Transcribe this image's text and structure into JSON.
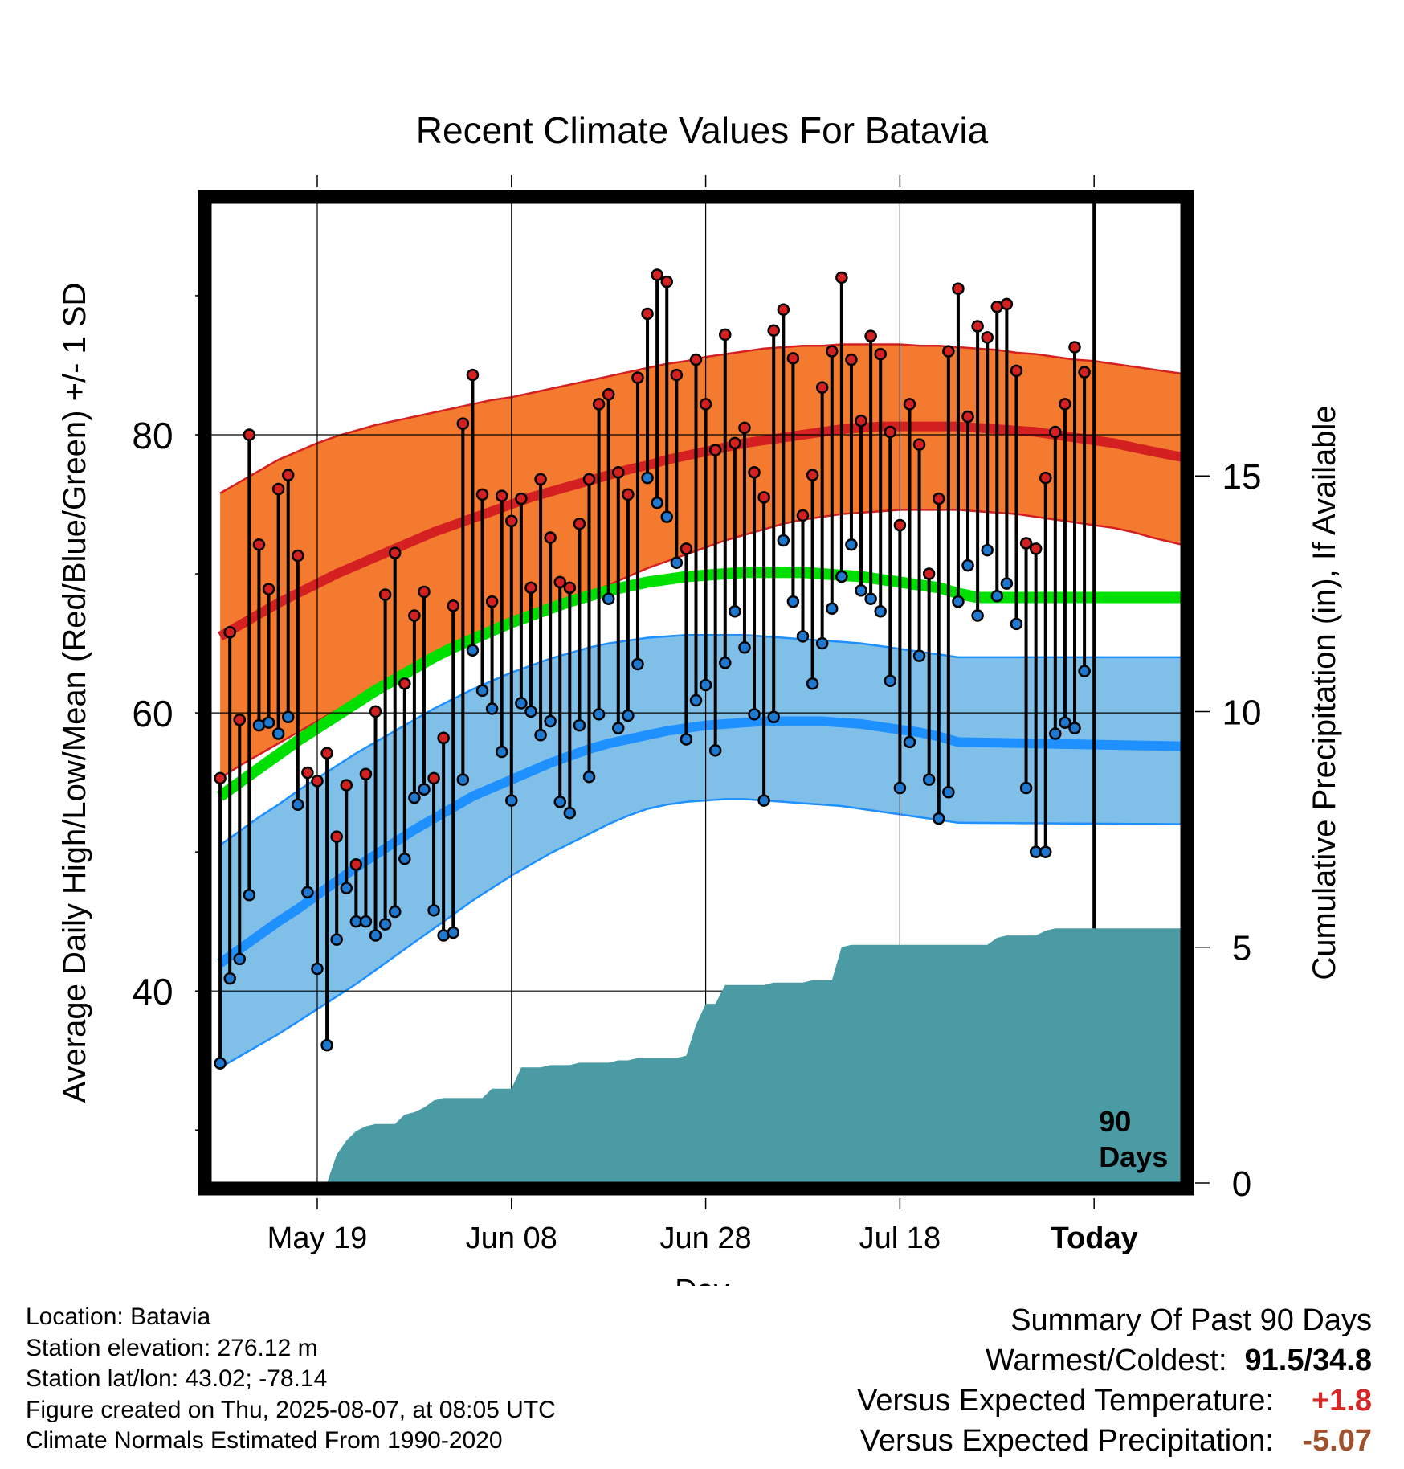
{
  "chart_data": {
    "type": "line",
    "title": "Recent Climate Values For Batavia",
    "xlabel": "Day",
    "ylabel": "Average Daily High/Low/Mean (Red/Blue/Green) +/- 1 SD",
    "y2label": "Cumulative Precipitation (in), If Available",
    "x_tick_labels": [
      "May 19",
      "Jun 08",
      "Jun 28",
      "Jul 18",
      "Today"
    ],
    "x_tick_days": [
      10,
      30,
      50,
      70,
      90
    ],
    "ylim": [
      26.2,
      96.7
    ],
    "y_ticks": [
      40,
      60,
      80
    ],
    "y_minor_ticks": [
      30,
      50,
      70,
      90
    ],
    "y2lim": [
      0,
      20.8
    ],
    "y2_ticks": [
      0,
      5,
      10,
      15
    ],
    "xlim": [
      -1,
      99
    ],
    "today_label": "90 Days",
    "grid": true,
    "colors": {
      "high_band": "#f47a30",
      "high_line": "#d42020",
      "low_band": "#80c0e8",
      "low_line": "#1e90ff",
      "mean_line": "#00e000",
      "precip": "#4a9ba3",
      "high_dot": "#d42020",
      "low_dot": "#1e78d0"
    },
    "normal_high": [
      65.5,
      66.3,
      67.1,
      67.9,
      68.6,
      69.3,
      70.0,
      70.6,
      71.2,
      71.8,
      72.4,
      73.0,
      73.5,
      74.0,
      74.5,
      75.0,
      75.5,
      75.9,
      76.3,
      76.7,
      77.1,
      77.5,
      77.8,
      78.2,
      78.5,
      78.8,
      79.1,
      79.4,
      79.6,
      79.8,
      80.0,
      80.2,
      80.4,
      80.5,
      80.6,
      80.6,
      80.6,
      80.6,
      80.6,
      80.5,
      80.4,
      80.3,
      80.2,
      80.0,
      79.8,
      79.6,
      79.4,
      79.1,
      78.8
    ],
    "normal_high_x": [
      0,
      2,
      4,
      6,
      8,
      10,
      12,
      14,
      16,
      18,
      20,
      22,
      24,
      26,
      28,
      30,
      32,
      34,
      36,
      38,
      40,
      42,
      44,
      46,
      48,
      50,
      52,
      54,
      56,
      58,
      60,
      62,
      64,
      66,
      68,
      70,
      72,
      74,
      76,
      78,
      80,
      82,
      84,
      86,
      88,
      90,
      92,
      94,
      96
    ],
    "normal_high_upper": [
      75.8,
      76.6,
      77.4,
      78.2,
      78.8,
      79.4,
      79.9,
      80.3,
      80.7,
      81.0,
      81.3,
      81.6,
      81.9,
      82.2,
      82.5,
      82.7,
      83.0,
      83.3,
      83.6,
      83.9,
      84.2,
      84.5,
      84.8,
      85.1,
      85.3,
      85.6,
      85.8,
      86.0,
      86.2,
      86.3,
      86.4,
      86.4,
      86.5,
      86.5,
      86.5,
      86.5,
      86.4,
      86.4,
      86.3,
      86.2,
      86.1,
      85.9,
      85.8,
      85.6,
      85.4,
      85.3,
      85.1,
      84.9,
      84.7
    ],
    "normal_high_lower": [
      55.3,
      56.2,
      57.0,
      57.8,
      58.6,
      59.4,
      60.2,
      60.9,
      61.6,
      62.3,
      63.0,
      63.7,
      64.4,
      65.0,
      65.6,
      66.2,
      66.8,
      67.4,
      68.0,
      68.6,
      69.2,
      69.8,
      70.4,
      70.9,
      71.4,
      71.9,
      72.4,
      72.8,
      73.2,
      73.6,
      73.9,
      74.1,
      74.3,
      74.4,
      74.5,
      74.6,
      74.6,
      74.6,
      74.6,
      74.5,
      74.4,
      74.3,
      74.1,
      73.9,
      73.7,
      73.5,
      73.3,
      73.0,
      72.6
    ],
    "normal_low": [
      42.0,
      43.0,
      44.0,
      45.0,
      45.9,
      46.9,
      47.9,
      48.9,
      49.8,
      50.7,
      51.6,
      52.4,
      53.2,
      54.0,
      54.6,
      55.2,
      55.8,
      56.4,
      56.9,
      57.4,
      57.8,
      58.1,
      58.4,
      58.7,
      58.9,
      59.1,
      59.2,
      59.3,
      59.4,
      59.4,
      59.4,
      59.4,
      59.3,
      59.2,
      59.0,
      58.8,
      58.6,
      58.3,
      57.9
    ],
    "normal_low_x": [
      0,
      2,
      4,
      6,
      8,
      10,
      12,
      14,
      16,
      18,
      20,
      22,
      24,
      26,
      28,
      30,
      32,
      34,
      36,
      38,
      40,
      42,
      44,
      46,
      48,
      50,
      52,
      54,
      56,
      58,
      60,
      62,
      64,
      66,
      68,
      70,
      72,
      74,
      76
    ],
    "normal_low_upper": [
      50.5,
      51.5,
      52.5,
      53.4,
      54.4,
      55.3,
      56.2,
      57.1,
      57.9,
      58.7,
      59.5,
      60.3,
      61.0,
      61.7,
      62.3,
      62.9,
      63.4,
      63.9,
      64.3,
      64.7,
      65.0,
      65.2,
      65.4,
      65.5,
      65.6,
      65.6,
      65.6,
      65.6,
      65.5,
      65.4,
      65.3,
      65.2,
      65.1,
      65.0,
      64.8,
      64.6,
      64.4,
      64.2,
      64.0
    ],
    "normal_low_lower": [
      34.5,
      35.3,
      36.1,
      36.9,
      37.8,
      38.7,
      39.6,
      40.5,
      41.5,
      42.5,
      43.5,
      44.5,
      45.5,
      46.5,
      47.4,
      48.3,
      49.1,
      49.9,
      50.6,
      51.3,
      52.0,
      52.6,
      53.1,
      53.4,
      53.6,
      53.7,
      53.8,
      53.8,
      53.7,
      53.6,
      53.5,
      53.4,
      53.3,
      53.1,
      52.9,
      52.7,
      52.5,
      52.3,
      52.1
    ],
    "normal_mean": [
      54.0,
      55.0,
      56.0,
      57.0,
      58.0,
      58.9,
      59.8,
      60.7,
      61.6,
      62.4,
      63.2,
      64.0,
      64.7,
      65.3,
      65.9,
      66.5,
      67.0,
      67.5,
      68.0,
      68.4,
      68.8,
      69.1,
      69.4,
      69.6,
      69.8,
      69.9,
      70.0,
      70.1,
      70.1,
      70.1,
      70.1,
      70.0,
      69.9,
      69.8,
      69.6,
      69.4,
      69.2,
      69.0,
      68.6,
      68.3
    ],
    "normal_mean_x": [
      0,
      2,
      4,
      6,
      8,
      10,
      12,
      14,
      16,
      18,
      20,
      22,
      24,
      26,
      28,
      30,
      32,
      34,
      36,
      38,
      40,
      42,
      44,
      46,
      48,
      50,
      52,
      54,
      56,
      58,
      60,
      62,
      64,
      66,
      68,
      70,
      72,
      74,
      76,
      78
    ],
    "series": [
      {
        "name": "High",
        "days": [
          0,
          1,
          2,
          3,
          4,
          5,
          6,
          7,
          8,
          9,
          10,
          11,
          12,
          13,
          14,
          15,
          16,
          17,
          18,
          19,
          20,
          21,
          22,
          23,
          24,
          25,
          26,
          27,
          28,
          29,
          30,
          31,
          32,
          33,
          34,
          35,
          36,
          37,
          38,
          39,
          40,
          41,
          42,
          43,
          44,
          45,
          46,
          47,
          48,
          49,
          50,
          51,
          52,
          53,
          54,
          55,
          56,
          57,
          58,
          59,
          60,
          61,
          62,
          63,
          64,
          65,
          66,
          67,
          68,
          69,
          70,
          71,
          72,
          73,
          74,
          75,
          76,
          77,
          78,
          79,
          80,
          81,
          82,
          83,
          84,
          85,
          86,
          87,
          88,
          89
        ],
        "values": [
          55.3,
          65.8,
          59.5,
          80.0,
          72.1,
          68.9,
          76.1,
          77.1,
          71.3,
          55.7,
          55.1,
          57.1,
          51.1,
          54.8,
          49.1,
          55.6,
          60.1,
          68.5,
          71.5,
          62.1,
          67.0,
          68.7,
          55.3,
          58.2,
          67.7,
          80.8,
          84.3,
          75.7,
          68.0,
          75.6,
          73.8,
          75.4,
          69.0,
          76.8,
          72.6,
          69.4,
          69.0,
          73.6,
          76.8,
          82.2,
          82.9,
          77.3,
          75.7,
          84.1,
          88.7,
          91.5,
          91.0,
          84.3,
          71.8,
          85.4,
          82.2,
          78.9,
          87.2,
          79.4,
          80.5,
          77.3,
          75.5,
          87.5,
          89.0,
          85.5,
          74.2,
          77.1,
          83.4,
          86.0,
          91.3,
          85.4,
          81.0,
          87.1,
          85.8,
          80.2,
          73.5,
          82.2,
          79.3,
          70.0,
          75.4,
          86.0,
          90.5,
          81.3,
          87.8,
          87.0,
          89.2,
          89.4,
          84.6,
          72.2,
          71.8,
          76.9,
          80.2,
          82.2,
          86.3,
          84.5
        ]
      },
      {
        "name": "Low",
        "days": [
          0,
          1,
          2,
          3,
          4,
          5,
          6,
          7,
          8,
          9,
          10,
          11,
          12,
          13,
          14,
          15,
          16,
          17,
          18,
          19,
          20,
          21,
          22,
          23,
          24,
          25,
          26,
          27,
          28,
          29,
          30,
          31,
          32,
          33,
          34,
          35,
          36,
          37,
          38,
          39,
          40,
          41,
          42,
          43,
          44,
          45,
          46,
          47,
          48,
          49,
          50,
          51,
          52,
          53,
          54,
          55,
          56,
          57,
          58,
          59,
          60,
          61,
          62,
          63,
          64,
          65,
          66,
          67,
          68,
          69,
          70,
          71,
          72,
          73,
          74,
          75,
          76,
          77,
          78,
          79,
          80,
          81,
          82,
          83,
          84,
          85,
          86,
          87,
          88,
          89
        ],
        "values": [
          34.8,
          40.9,
          42.3,
          46.9,
          59.1,
          59.3,
          58.5,
          59.7,
          53.4,
          47.1,
          41.6,
          36.1,
          43.7,
          47.4,
          45.0,
          45.0,
          44.0,
          44.8,
          45.7,
          49.5,
          53.9,
          54.5,
          45.8,
          44.0,
          44.2,
          55.2,
          64.5,
          61.6,
          60.3,
          57.2,
          53.7,
          60.7,
          60.1,
          58.4,
          59.4,
          53.6,
          52.8,
          59.1,
          55.4,
          59.9,
          68.2,
          58.9,
          59.8,
          63.5,
          76.9,
          75.1,
          74.1,
          70.8,
          58.1,
          60.9,
          62.0,
          57.3,
          63.6,
          67.3,
          64.7,
          59.9,
          53.7,
          59.7,
          72.4,
          68.0,
          65.5,
          62.1,
          65.0,
          67.5,
          69.8,
          72.1,
          68.8,
          68.2,
          67.3,
          62.3,
          54.6,
          57.9,
          64.1,
          55.2,
          52.4,
          54.3,
          68.0,
          70.6,
          67.0,
          71.7,
          68.4,
          69.3,
          66.4,
          54.6,
          50.0,
          50.0,
          58.5,
          59.3,
          58.9,
          63.0
        ]
      }
    ],
    "precip": {
      "days": [
        10,
        11,
        12,
        13,
        14,
        15,
        16,
        17,
        18,
        19,
        20,
        21,
        22,
        23,
        24,
        25,
        26,
        27,
        28,
        29,
        30,
        31,
        32,
        33,
        34,
        35,
        36,
        37,
        38,
        39,
        40,
        41,
        42,
        43,
        44,
        45,
        46,
        47,
        48,
        49,
        50,
        51,
        52,
        53,
        54,
        55,
        56,
        57,
        58,
        59,
        60,
        61,
        62,
        63,
        64,
        65,
        66,
        67,
        68,
        69,
        70,
        71,
        72,
        73,
        74,
        75,
        76,
        77,
        78,
        79,
        80,
        81,
        82,
        83,
        84,
        85,
        86,
        87,
        88,
        89,
        90,
        91,
        92,
        93,
        94,
        95,
        96,
        97,
        98,
        99
      ],
      "values": [
        0.0,
        0.0,
        0.6,
        0.9,
        1.1,
        1.2,
        1.25,
        1.25,
        1.25,
        1.45,
        1.5,
        1.6,
        1.75,
        1.8,
        1.8,
        1.8,
        1.8,
        1.8,
        2.0,
        2.0,
        2.0,
        2.45,
        2.45,
        2.45,
        2.5,
        2.5,
        2.5,
        2.55,
        2.55,
        2.55,
        2.55,
        2.6,
        2.6,
        2.65,
        2.65,
        2.65,
        2.65,
        2.65,
        2.7,
        3.35,
        3.8,
        3.8,
        4.2,
        4.2,
        4.2,
        4.2,
        4.2,
        4.25,
        4.25,
        4.25,
        4.25,
        4.3,
        4.3,
        4.3,
        5.0,
        5.05,
        5.05,
        5.05,
        5.05,
        5.05,
        5.05,
        5.05,
        5.05,
        5.05,
        5.05,
        5.05,
        5.05,
        5.05,
        5.05,
        5.05,
        5.2,
        5.25,
        5.25,
        5.25,
        5.25,
        5.35,
        5.4,
        5.4,
        5.4,
        5.4,
        5.4,
        5.4,
        5.4,
        5.4,
        5.4,
        5.4,
        5.4,
        5.4,
        5.4,
        5.4
      ]
    }
  },
  "info": {
    "location": "Location: Batavia",
    "elevation": "Station elevation: 276.12 m",
    "latlon": "Station lat/lon: 43.02; -78.14",
    "created": "Figure created on Thu, 2025-08-07, at 08:05 UTC",
    "normals": "Climate Normals Estimated From 1990-2020"
  },
  "summary": {
    "heading": "Summary Of Past 90 Days",
    "warmest_coldest_label": "Warmest/Coldest:",
    "warmest_coldest_value": "91.5/34.8",
    "temp_label": "Versus Expected Temperature:",
    "temp_value": "+1.8",
    "temp_color": "#d62828",
    "precip_label": "Versus Expected Precipitation:",
    "precip_value": "-5.07",
    "precip_color": "#a0522d"
  }
}
